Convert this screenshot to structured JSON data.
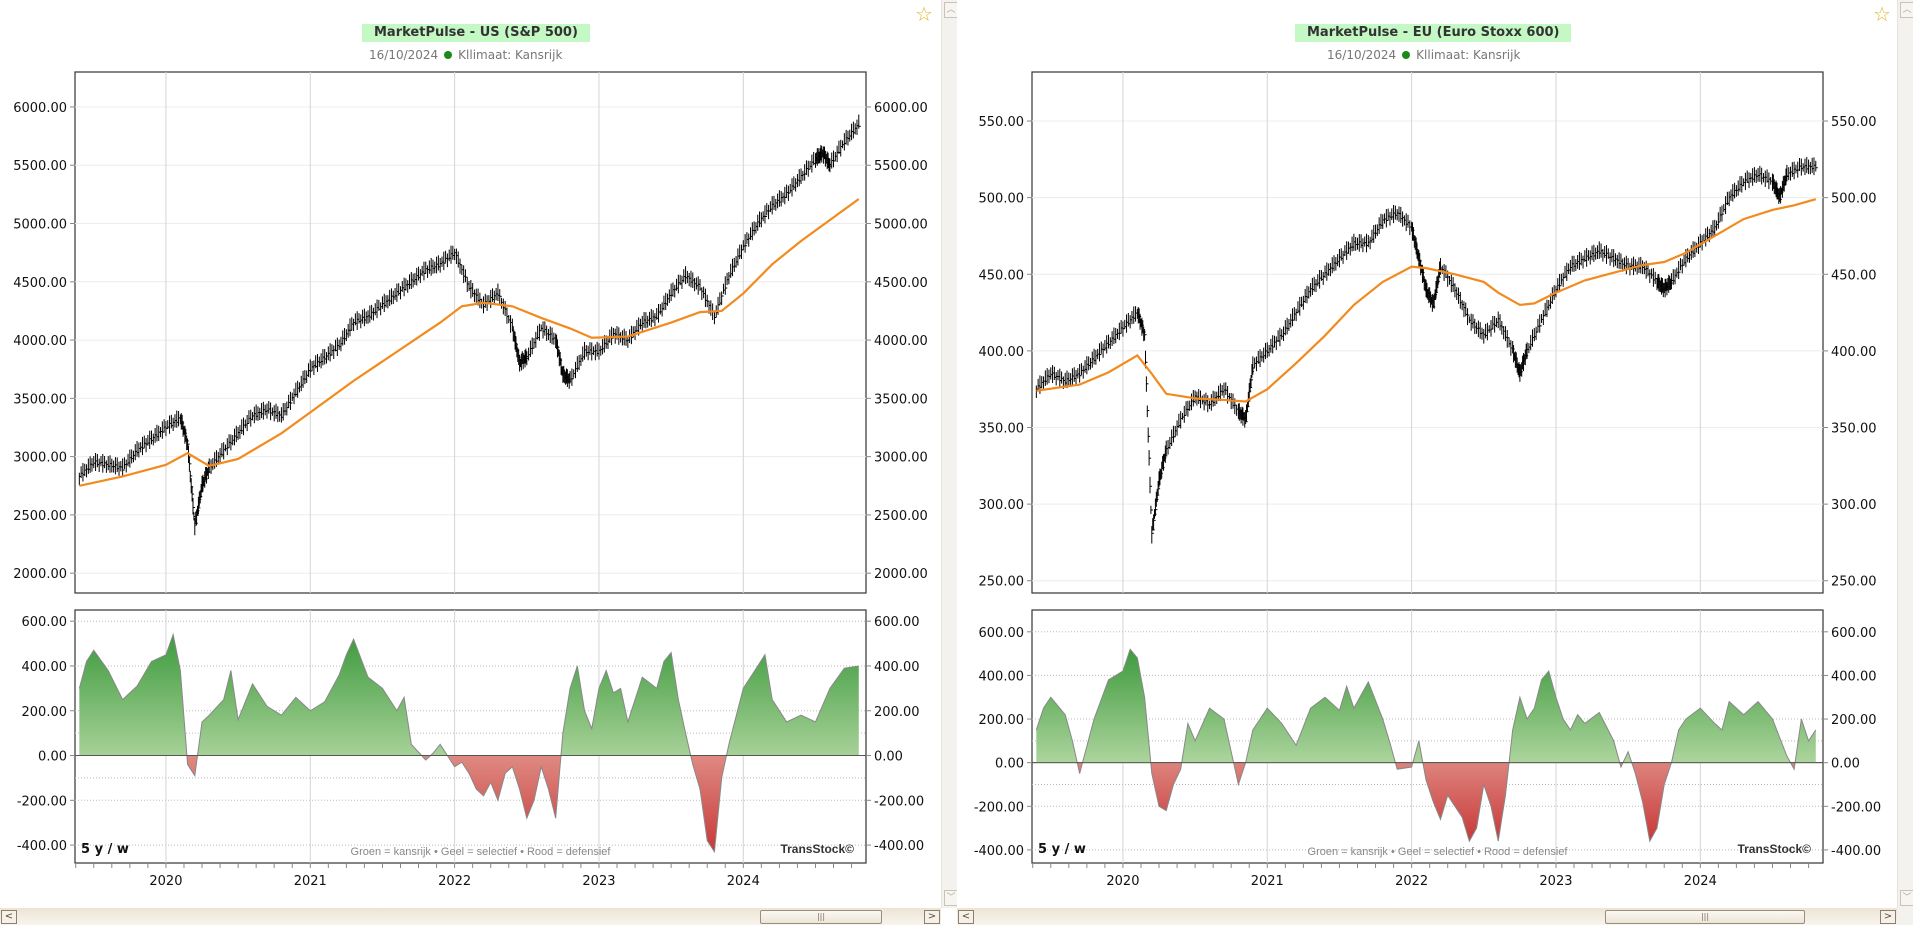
{
  "colors": {
    "title_bg": "#c4f8c4",
    "ma_line": "#f28a1e",
    "price": "#000000",
    "green": "#3a9a3a",
    "red": "#d04848",
    "status_dot": "#1a8a1a",
    "star": "#e0b830"
  },
  "chart_data": [
    {
      "type": "line",
      "id": "us",
      "title": "MarketPulse - US (S&P 500)",
      "date": "16/10/2024",
      "climate": "Kllimaat: Kansrijk",
      "ylim": [
        1830,
        6300
      ],
      "yticks": [
        "6000.00",
        "5500.00",
        "5000.00",
        "4500.00",
        "4000.00",
        "3500.00",
        "3000.00",
        "2500.00",
        "2000.00"
      ],
      "ytick_values": [
        6000,
        5500,
        5000,
        4500,
        4000,
        3500,
        3000,
        2500,
        2000
      ],
      "xticks": [
        "2020",
        "2021",
        "2022",
        "2023",
        "2024"
      ],
      "xlim": [
        2019.37,
        2024.85
      ],
      "price_series": {
        "name": "S&P 500 weekly",
        "x": [
          2019.4,
          2019.5,
          2019.6,
          2019.7,
          2019.8,
          2019.9,
          2020.0,
          2020.1,
          2020.15,
          2020.2,
          2020.25,
          2020.3,
          2020.4,
          2020.5,
          2020.6,
          2020.7,
          2020.8,
          2020.9,
          2021.0,
          2021.1,
          2021.2,
          2021.3,
          2021.4,
          2021.5,
          2021.6,
          2021.7,
          2021.8,
          2021.9,
          2022.0,
          2022.1,
          2022.2,
          2022.3,
          2022.4,
          2022.45,
          2022.5,
          2022.6,
          2022.7,
          2022.75,
          2022.8,
          2022.9,
          2023.0,
          2023.1,
          2023.2,
          2023.3,
          2023.4,
          2023.5,
          2023.6,
          2023.7,
          2023.8,
          2023.9,
          2024.0,
          2024.1,
          2024.2,
          2024.3,
          2024.4,
          2024.5,
          2024.55,
          2024.6,
          2024.7,
          2024.8
        ],
        "values": [
          2830,
          2950,
          2930,
          2900,
          3050,
          3150,
          3250,
          3330,
          3100,
          2400,
          2750,
          2900,
          3050,
          3200,
          3350,
          3400,
          3350,
          3550,
          3750,
          3850,
          3950,
          4150,
          4200,
          4300,
          4400,
          4500,
          4600,
          4650,
          4750,
          4450,
          4300,
          4400,
          4100,
          3800,
          3850,
          4100,
          4000,
          3700,
          3650,
          3900,
          3900,
          4050,
          4000,
          4150,
          4200,
          4400,
          4550,
          4450,
          4200,
          4550,
          4800,
          5000,
          5150,
          5250,
          5400,
          5550,
          5600,
          5500,
          5700,
          5850
        ]
      },
      "ma_series": {
        "name": "MA",
        "x": [
          2019.4,
          2019.7,
          2020.0,
          2020.15,
          2020.3,
          2020.5,
          2020.8,
          2021.0,
          2021.3,
          2021.6,
          2021.9,
          2022.05,
          2022.2,
          2022.4,
          2022.6,
          2022.8,
          2022.95,
          2023.2,
          2023.5,
          2023.7,
          2023.85,
          2024.0,
          2024.2,
          2024.4,
          2024.6,
          2024.8
        ],
        "values": [
          2750,
          2830,
          2930,
          3030,
          2920,
          2980,
          3200,
          3380,
          3650,
          3900,
          4150,
          4290,
          4320,
          4290,
          4190,
          4100,
          4020,
          4030,
          4150,
          4240,
          4250,
          4400,
          4650,
          4850,
          5030,
          5210
        ]
      },
      "indicator": {
        "ylim": [
          -480,
          650
        ],
        "yticks": [
          "600.00",
          "400.00",
          "200.00",
          "0.00",
          "-200.00",
          "-400.00"
        ],
        "ytick_values": [
          600,
          400,
          200,
          0,
          -200,
          -400
        ],
        "x": [
          2019.4,
          2019.45,
          2019.5,
          2019.6,
          2019.7,
          2019.8,
          2019.9,
          2020.0,
          2020.05,
          2020.1,
          2020.15,
          2020.2,
          2020.25,
          2020.3,
          2020.4,
          2020.45,
          2020.5,
          2020.6,
          2020.7,
          2020.8,
          2020.9,
          2021.0,
          2021.1,
          2021.2,
          2021.25,
          2021.3,
          2021.4,
          2021.5,
          2021.6,
          2021.65,
          2021.7,
          2021.8,
          2021.85,
          2021.9,
          2022.0,
          2022.05,
          2022.1,
          2022.15,
          2022.2,
          2022.25,
          2022.3,
          2022.35,
          2022.4,
          2022.45,
          2022.5,
          2022.55,
          2022.6,
          2022.65,
          2022.7,
          2022.75,
          2022.8,
          2022.85,
          2022.9,
          2022.95,
          2023.0,
          2023.05,
          2023.1,
          2023.15,
          2023.2,
          2023.3,
          2023.4,
          2023.45,
          2023.5,
          2023.55,
          2023.6,
          2023.65,
          2023.7,
          2023.75,
          2023.8,
          2023.85,
          2023.9,
          2024.0,
          2024.1,
          2024.15,
          2024.2,
          2024.3,
          2024.4,
          2024.5,
          2024.6,
          2024.7,
          2024.8
        ],
        "values": [
          300,
          420,
          470,
          380,
          250,
          310,
          420,
          450,
          540,
          380,
          -40,
          -90,
          150,
          180,
          250,
          380,
          160,
          320,
          220,
          180,
          260,
          200,
          240,
          360,
          450,
          520,
          350,
          300,
          200,
          260,
          50,
          -20,
          10,
          50,
          -50,
          -30,
          -80,
          -150,
          -180,
          -120,
          -200,
          -80,
          -50,
          -150,
          -280,
          -200,
          -50,
          -150,
          -280,
          100,
          300,
          400,
          200,
          120,
          300,
          380,
          280,
          300,
          150,
          350,
          300,
          420,
          460,
          250,
          100,
          -40,
          -150,
          -380,
          -430,
          -100,
          50,
          300,
          400,
          450,
          250,
          150,
          180,
          150,
          300,
          390,
          400
        ]
      }
    },
    {
      "type": "line",
      "id": "eu",
      "title": "MarketPulse - EU (Euro Stoxx 600)",
      "date": "16/10/2024",
      "climate": "Kllimaat: Kansrijk",
      "ylim": [
        242,
        582
      ],
      "yticks": [
        "550.00",
        "500.00",
        "450.00",
        "400.00",
        "350.00",
        "300.00",
        "250.00"
      ],
      "ytick_values": [
        550,
        500,
        450,
        400,
        350,
        300,
        250
      ],
      "xticks": [
        "2020",
        "2021",
        "2022",
        "2023",
        "2024"
      ],
      "xlim": [
        2019.37,
        2024.85
      ],
      "price_series": {
        "name": "Euro Stoxx 600 weekly",
        "x": [
          2019.4,
          2019.5,
          2019.6,
          2019.7,
          2019.8,
          2019.9,
          2020.0,
          2020.1,
          2020.15,
          2020.2,
          2020.25,
          2020.3,
          2020.4,
          2020.5,
          2020.6,
          2020.7,
          2020.8,
          2020.85,
          2020.9,
          2021.0,
          2021.1,
          2021.2,
          2021.3,
          2021.4,
          2021.5,
          2021.6,
          2021.7,
          2021.8,
          2021.9,
          2022.0,
          2022.05,
          2022.1,
          2022.15,
          2022.2,
          2022.3,
          2022.4,
          2022.5,
          2022.6,
          2022.7,
          2022.75,
          2022.8,
          2022.9,
          2023.0,
          2023.1,
          2023.2,
          2023.3,
          2023.4,
          2023.5,
          2023.6,
          2023.7,
          2023.75,
          2023.8,
          2023.9,
          2024.0,
          2024.1,
          2024.2,
          2024.3,
          2024.4,
          2024.5,
          2024.55,
          2024.6,
          2024.7,
          2024.8
        ],
        "values": [
          375,
          385,
          380,
          385,
          395,
          405,
          415,
          425,
          410,
          280,
          315,
          335,
          355,
          370,
          365,
          375,
          360,
          355,
          390,
          400,
          410,
          425,
          440,
          450,
          460,
          470,
          470,
          485,
          490,
          480,
          460,
          440,
          430,
          455,
          440,
          420,
          410,
          420,
          400,
          385,
          400,
          420,
          440,
          455,
          460,
          465,
          460,
          455,
          455,
          445,
          440,
          445,
          460,
          470,
          480,
          500,
          510,
          515,
          510,
          500,
          515,
          520,
          520
        ]
      },
      "ma_series": {
        "name": "MA",
        "x": [
          2019.4,
          2019.7,
          2019.9,
          2020.1,
          2020.2,
          2020.3,
          2020.5,
          2020.7,
          2020.85,
          2021.0,
          2021.2,
          2021.4,
          2021.6,
          2021.8,
          2022.0,
          2022.1,
          2022.2,
          2022.3,
          2022.5,
          2022.6,
          2022.75,
          2022.85,
          2023.0,
          2023.2,
          2023.4,
          2023.6,
          2023.75,
          2023.9,
          2024.1,
          2024.3,
          2024.5,
          2024.65,
          2024.8
        ],
        "values": [
          374,
          378,
          386,
          397,
          385,
          372,
          369,
          368,
          367,
          375,
          392,
          410,
          430,
          445,
          455,
          454,
          452,
          450,
          445,
          438,
          430,
          431,
          438,
          446,
          451,
          456,
          458,
          464,
          475,
          486,
          492,
          495,
          499
        ]
      },
      "indicator": {
        "ylim": [
          -460,
          700
        ],
        "yticks": [
          "600.00",
          "400.00",
          "200.00",
          "0.00",
          "-200.00",
          "-400.00"
        ],
        "ytick_values": [
          600,
          400,
          200,
          0,
          -200,
          -400
        ],
        "x": [
          2019.4,
          2019.45,
          2019.5,
          2019.6,
          2019.65,
          2019.7,
          2019.8,
          2019.9,
          2020.0,
          2020.05,
          2020.1,
          2020.15,
          2020.2,
          2020.25,
          2020.3,
          2020.35,
          2020.4,
          2020.45,
          2020.5,
          2020.6,
          2020.7,
          2020.8,
          2020.85,
          2020.9,
          2021.0,
          2021.1,
          2021.2,
          2021.3,
          2021.4,
          2021.5,
          2021.55,
          2021.6,
          2021.7,
          2021.8,
          2021.85,
          2021.9,
          2022.0,
          2022.05,
          2022.1,
          2022.15,
          2022.2,
          2022.25,
          2022.3,
          2022.35,
          2022.4,
          2022.45,
          2022.5,
          2022.55,
          2022.6,
          2022.65,
          2022.7,
          2022.75,
          2022.8,
          2022.85,
          2022.9,
          2022.95,
          2023.0,
          2023.05,
          2023.1,
          2023.15,
          2023.2,
          2023.3,
          2023.4,
          2023.45,
          2023.5,
          2023.55,
          2023.6,
          2023.65,
          2023.7,
          2023.75,
          2023.8,
          2023.85,
          2023.9,
          2024.0,
          2024.1,
          2024.15,
          2024.2,
          2024.3,
          2024.4,
          2024.5,
          2024.6,
          2024.65,
          2024.7,
          2024.75,
          2024.8
        ],
        "values": [
          150,
          250,
          300,
          220,
          100,
          -50,
          200,
          380,
          420,
          520,
          480,
          300,
          -50,
          -200,
          -220,
          -100,
          -30,
          180,
          100,
          250,
          200,
          -100,
          0,
          150,
          250,
          180,
          80,
          250,
          300,
          240,
          350,
          250,
          370,
          200,
          90,
          -30,
          -20,
          100,
          -80,
          -180,
          -260,
          -150,
          -200,
          -250,
          -360,
          -300,
          -100,
          -200,
          -360,
          -150,
          150,
          300,
          200,
          250,
          380,
          420,
          300,
          200,
          150,
          220,
          180,
          230,
          100,
          -20,
          50,
          -50,
          -180,
          -360,
          -300,
          -100,
          0,
          150,
          200,
          250,
          180,
          150,
          280,
          220,
          280,
          200,
          30,
          -30,
          200,
          100,
          150
        ]
      }
    }
  ],
  "indicator_common": {
    "period_label": "5 y / w",
    "legend": "Groen = kansrijk • Geel = selectief • Rood = defensief",
    "brand": "TransStock©"
  },
  "icons": {
    "favorite": "star-icon",
    "scroll_up": "chevron-up-icon",
    "scroll_down": "chevron-down-icon",
    "scroll_left": "chevron-left-icon",
    "scroll_right": "chevron-right-icon",
    "thumb_grip": "|||"
  }
}
